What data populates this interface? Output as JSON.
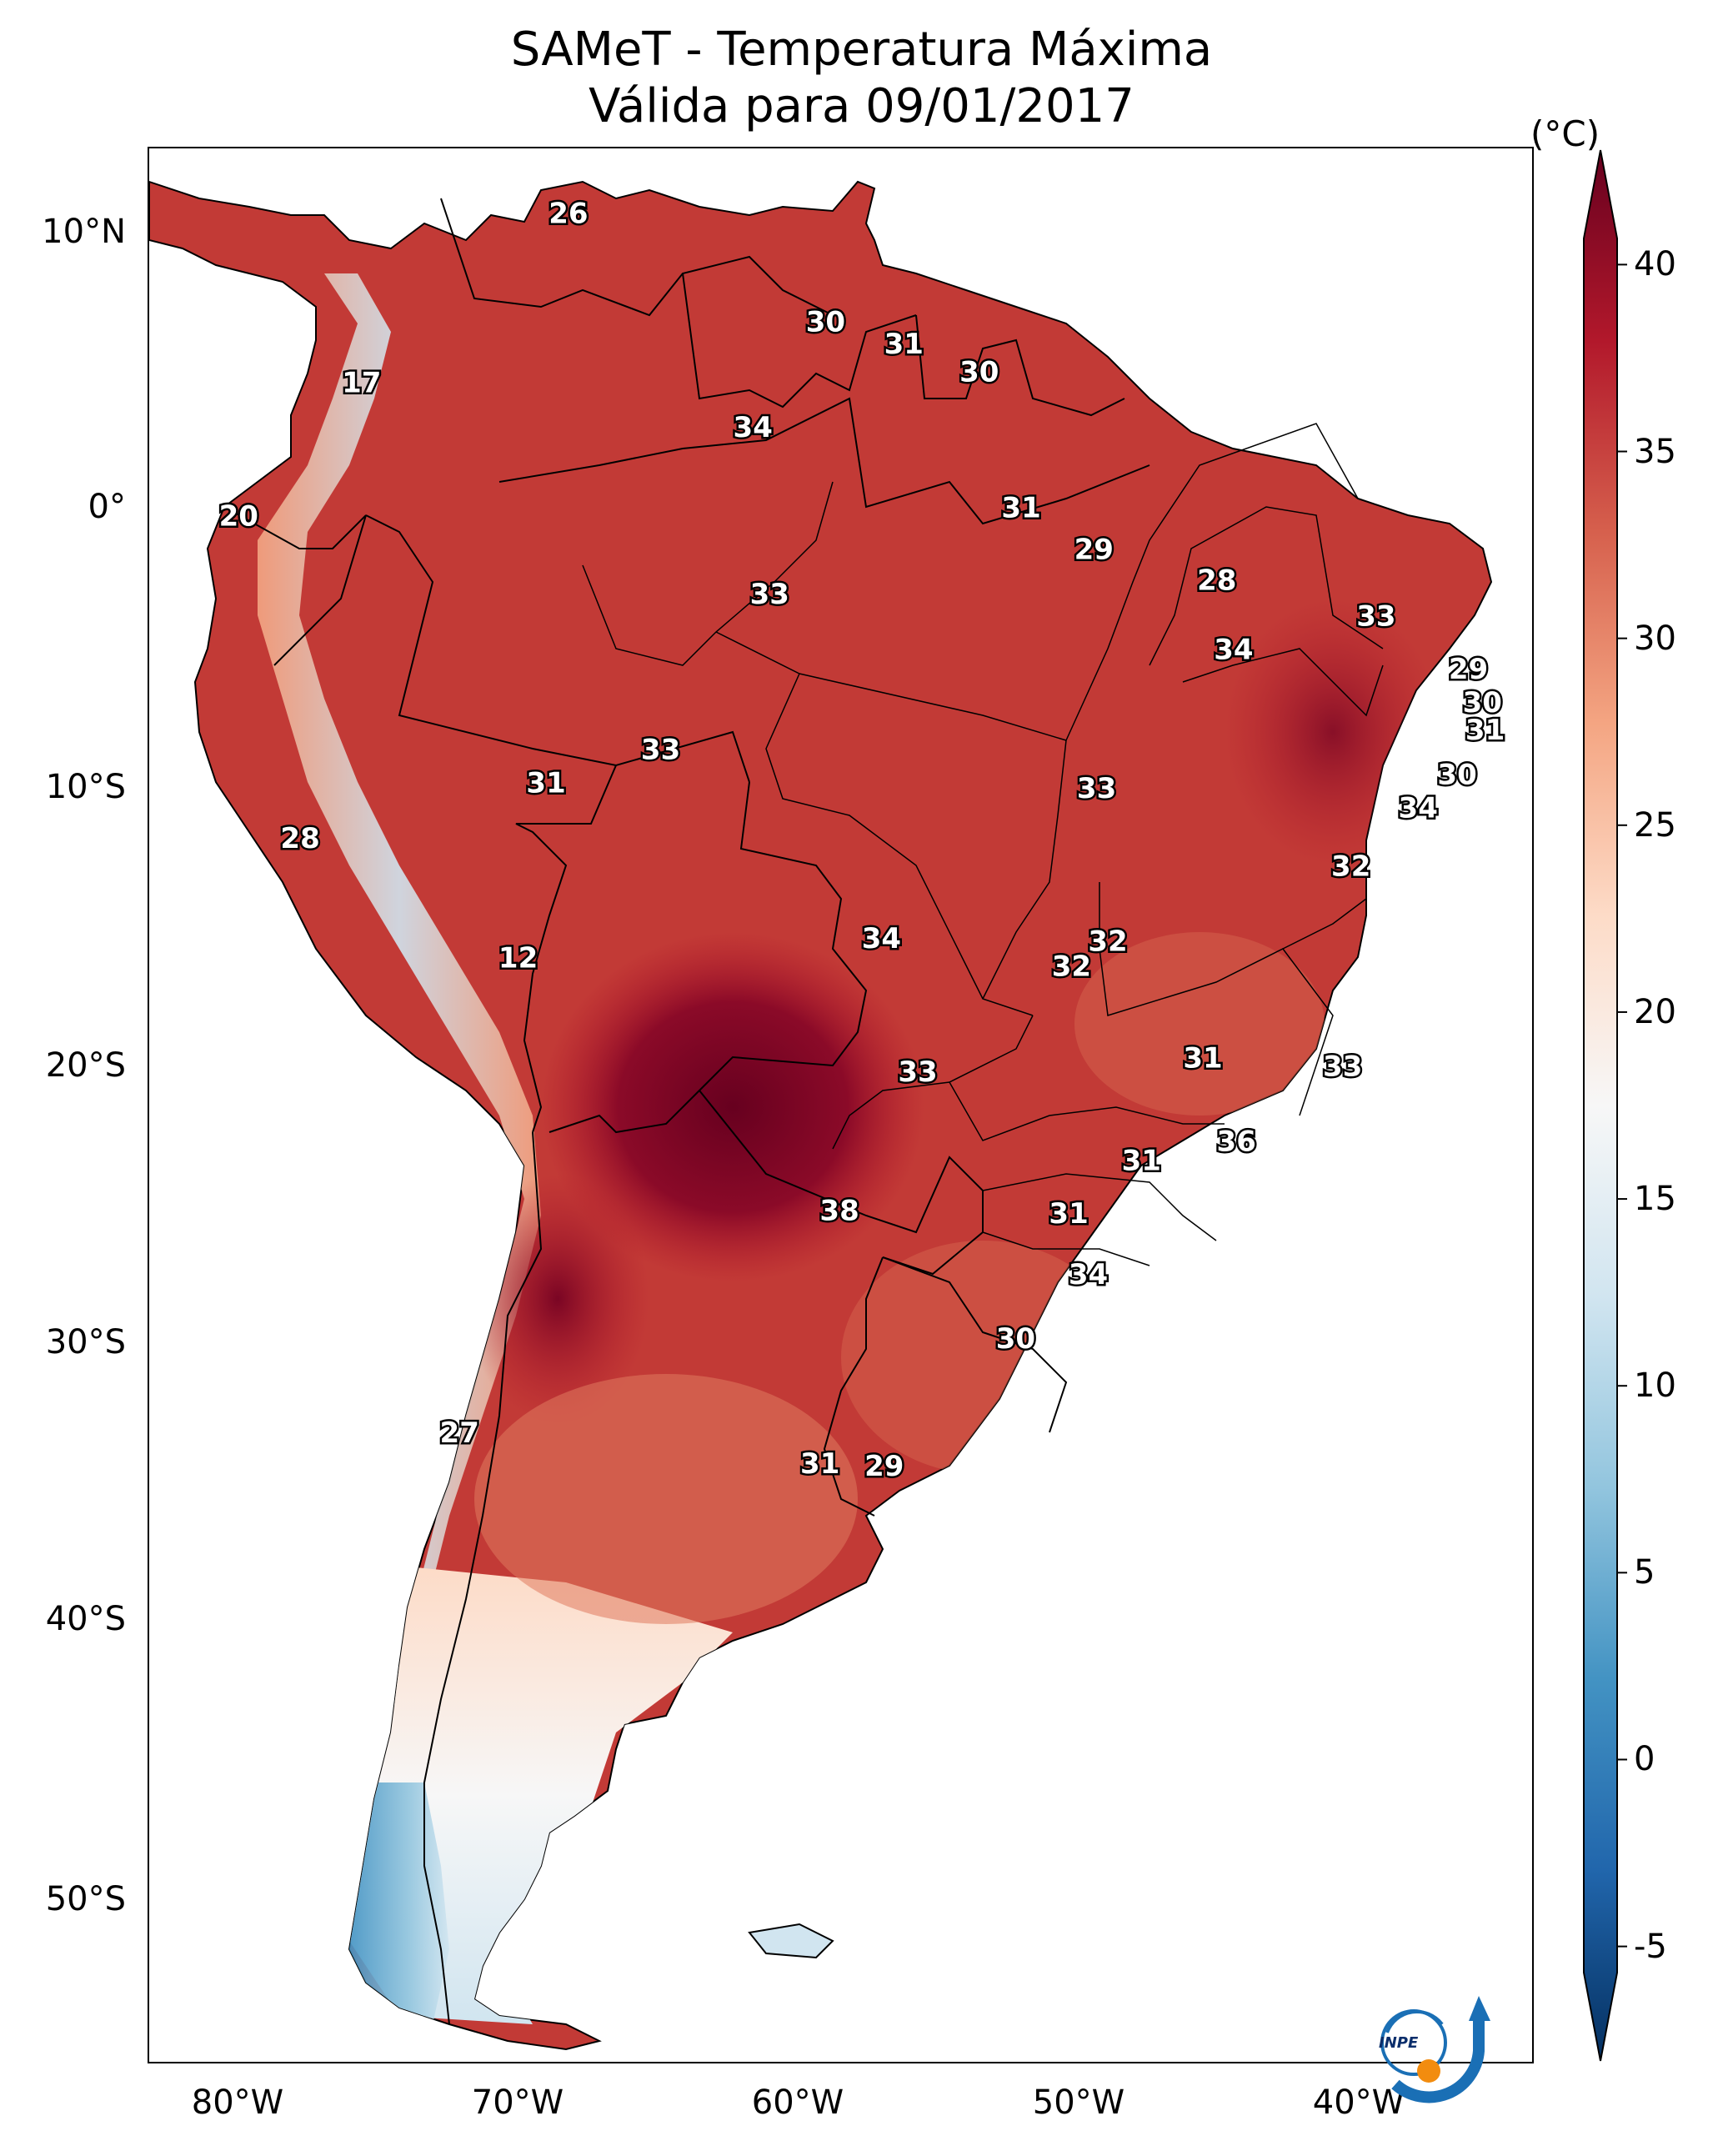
{
  "title": {
    "line1": "SAMeT - Temperatura Máxima",
    "line2": "Válida para 09/01/2017"
  },
  "axes": {
    "lat_labels": [
      "10°N",
      "0°",
      "10°S",
      "20°S",
      "30°S",
      "40°S",
      "50°S"
    ],
    "lon_labels": [
      "80°W",
      "70°W",
      "60°W",
      "50°W",
      "40°W"
    ]
  },
  "colorbar": {
    "unit": "(°C)",
    "min": -7,
    "max": 42,
    "tick_labels": [
      "40",
      "35",
      "30",
      "25",
      "20",
      "15",
      "10",
      "5",
      "0",
      "-5"
    ],
    "tick_values": [
      40,
      35,
      30,
      25,
      20,
      15,
      10,
      5,
      0,
      -5
    ],
    "colors": [
      "#053061",
      "#2166ac",
      "#4393c3",
      "#92c5de",
      "#d1e5f0",
      "#f7f7f7",
      "#fddbc7",
      "#f4a582",
      "#d6604d",
      "#b2182b",
      "#67001f"
    ]
  },
  "temperature_labels": [
    {
      "text": "26",
      "lon": -67.0,
      "lat": 10.6
    },
    {
      "text": "17",
      "lon": -74.4,
      "lat": 4.5
    },
    {
      "text": "30",
      "lon": -57.8,
      "lat": 6.7
    },
    {
      "text": "31",
      "lon": -55.0,
      "lat": 5.9
    },
    {
      "text": "30",
      "lon": -52.3,
      "lat": 4.9
    },
    {
      "text": "34",
      "lon": -60.4,
      "lat": 2.9
    },
    {
      "text": "20",
      "lon": -78.8,
      "lat": -0.3
    },
    {
      "text": "31",
      "lon": -50.8,
      "lat": 0.0
    },
    {
      "text": "29",
      "lon": -48.2,
      "lat": -1.5
    },
    {
      "text": "33",
      "lon": -59.8,
      "lat": -3.1
    },
    {
      "text": "28",
      "lon": -43.8,
      "lat": -2.6
    },
    {
      "text": "33",
      "lon": -38.1,
      "lat": -3.9
    },
    {
      "text": "34",
      "lon": -43.2,
      "lat": -5.1
    },
    {
      "text": "29",
      "lon": -34.8,
      "lat": -5.8
    },
    {
      "text": "30",
      "lon": -34.3,
      "lat": -7.0
    },
    {
      "text": "31",
      "lon": -34.2,
      "lat": -8.0
    },
    {
      "text": "33",
      "lon": -63.7,
      "lat": -8.7
    },
    {
      "text": "31",
      "lon": -67.8,
      "lat": -9.9
    },
    {
      "text": "33",
      "lon": -48.1,
      "lat": -10.1
    },
    {
      "text": "30",
      "lon": -35.2,
      "lat": -9.6
    },
    {
      "text": "34",
      "lon": -36.6,
      "lat": -10.8
    },
    {
      "text": "28",
      "lon": -76.6,
      "lat": -11.9
    },
    {
      "text": "32",
      "lon": -39.0,
      "lat": -12.9
    },
    {
      "text": "34",
      "lon": -55.8,
      "lat": -15.5
    },
    {
      "text": "32",
      "lon": -47.7,
      "lat": -15.6
    },
    {
      "text": "32",
      "lon": -49.0,
      "lat": -16.5
    },
    {
      "text": "12",
      "lon": -68.8,
      "lat": -16.2
    },
    {
      "text": "31",
      "lon": -44.3,
      "lat": -19.8
    },
    {
      "text": "33",
      "lon": -39.3,
      "lat": -20.1
    },
    {
      "text": "33",
      "lon": -54.5,
      "lat": -20.3
    },
    {
      "text": "36",
      "lon": -43.1,
      "lat": -22.8
    },
    {
      "text": "31",
      "lon": -46.5,
      "lat": -23.5
    },
    {
      "text": "38",
      "lon": -57.3,
      "lat": -25.3
    },
    {
      "text": "31",
      "lon": -49.1,
      "lat": -25.4
    },
    {
      "text": "34",
      "lon": -48.4,
      "lat": -27.6
    },
    {
      "text": "30",
      "lon": -51.0,
      "lat": -29.9
    },
    {
      "text": "27",
      "lon": -70.9,
      "lat": -33.3
    },
    {
      "text": "31",
      "lon": -58.0,
      "lat": -34.4
    },
    {
      "text": "29",
      "lon": -55.7,
      "lat": -34.5
    }
  ],
  "logo": {
    "text": "INPE"
  }
}
